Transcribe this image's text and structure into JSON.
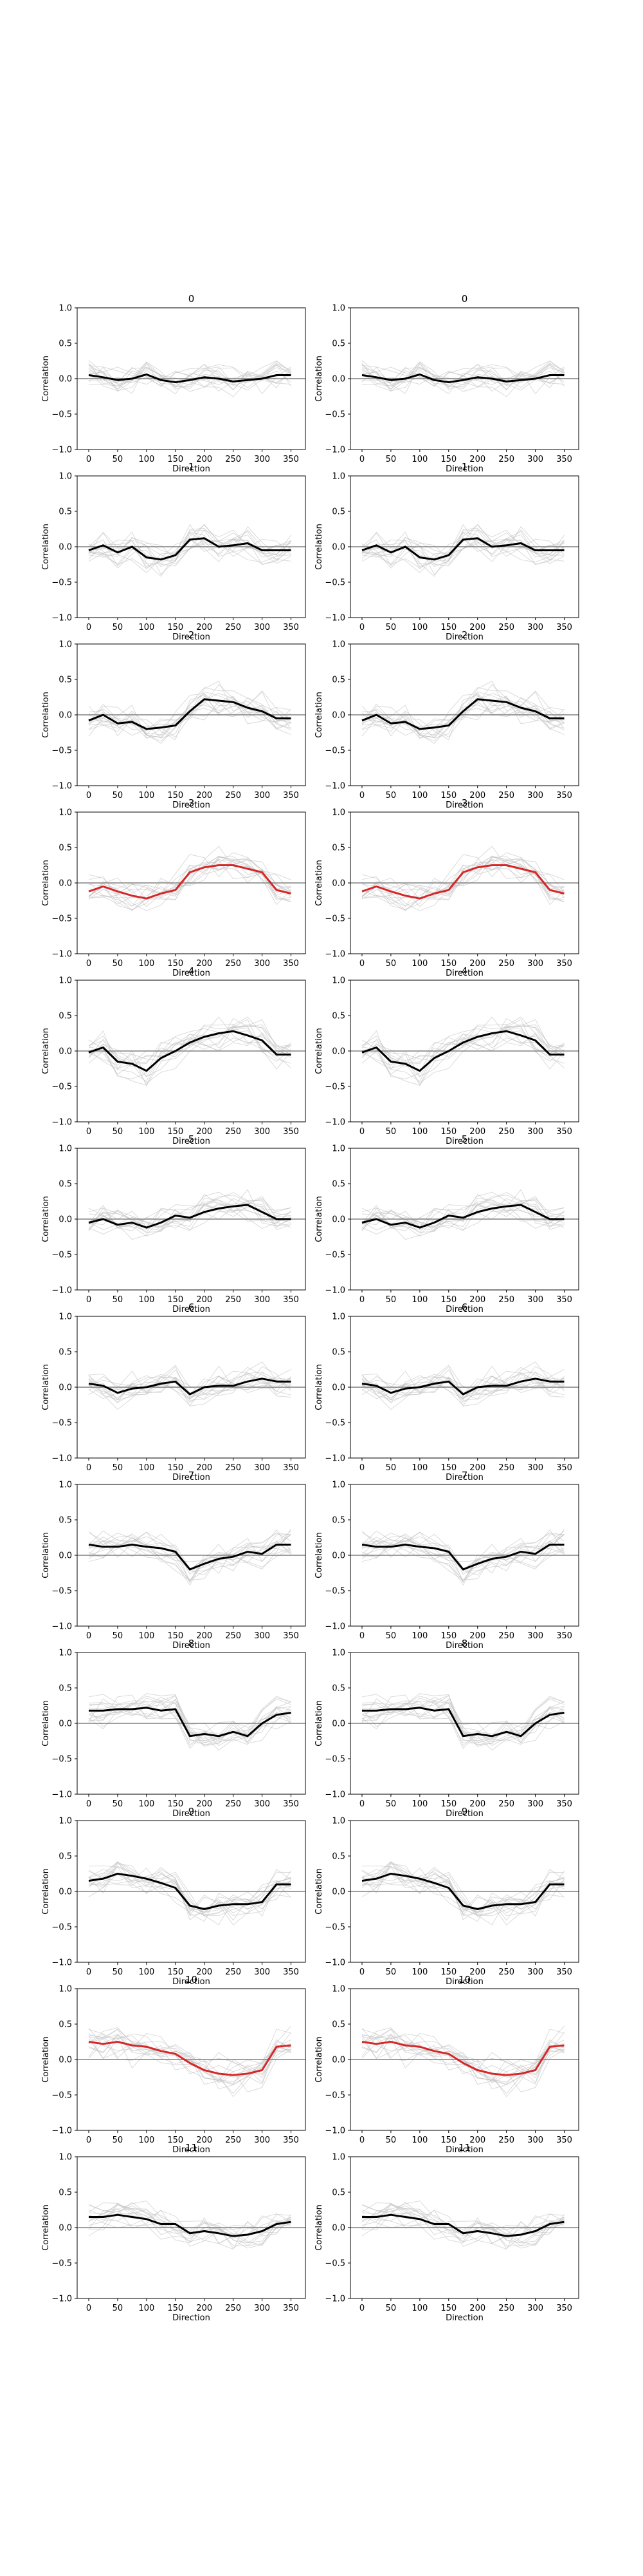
{
  "figure": {
    "xlabel": "Direction",
    "ylabel": "Correlation",
    "xticks": [
      0,
      50,
      100,
      150,
      200,
      250,
      300,
      350
    ],
    "yticks": [
      "1.0",
      "0.5",
      "0.0",
      "−0.5",
      "−1.0"
    ],
    "xlim": [
      -20,
      375
    ],
    "ylim": [
      -1.0,
      1.0
    ],
    "colors": {
      "mean_default": "#000000",
      "mean_highlight": "#d62728",
      "trials": "#bdbdbd",
      "zero_line": "#808080",
      "frame": "#000000"
    }
  },
  "chart_data": [
    {
      "type": "line",
      "row": 0,
      "col": 0,
      "title": "0",
      "highlight": false,
      "x": [
        0,
        25,
        50,
        75,
        100,
        125,
        150,
        175,
        200,
        225,
        250,
        275,
        300,
        325,
        350
      ],
      "y": [
        0.05,
        0.02,
        -0.02,
        0.0,
        0.06,
        -0.02,
        -0.05,
        -0.02,
        0.02,
        0.0,
        -0.04,
        -0.02,
        0.0,
        0.05,
        0.05
      ]
    },
    {
      "type": "line",
      "row": 0,
      "col": 1,
      "title": "0",
      "highlight": false,
      "x": [
        0,
        25,
        50,
        75,
        100,
        125,
        150,
        175,
        200,
        225,
        250,
        275,
        300,
        325,
        350
      ],
      "y": [
        0.05,
        0.02,
        -0.02,
        0.0,
        0.06,
        -0.02,
        -0.05,
        -0.02,
        0.02,
        0.0,
        -0.04,
        -0.02,
        0.0,
        0.05,
        0.05
      ]
    },
    {
      "type": "line",
      "row": 1,
      "col": 0,
      "title": "1",
      "highlight": false,
      "x": [
        0,
        25,
        50,
        75,
        100,
        125,
        150,
        175,
        200,
        225,
        250,
        275,
        300,
        325,
        350
      ],
      "y": [
        -0.05,
        0.02,
        -0.08,
        0.0,
        -0.15,
        -0.18,
        -0.12,
        0.1,
        0.12,
        0.0,
        0.02,
        0.05,
        -0.05,
        -0.05,
        -0.05
      ]
    },
    {
      "type": "line",
      "row": 1,
      "col": 1,
      "title": "1",
      "highlight": false,
      "x": [
        0,
        25,
        50,
        75,
        100,
        125,
        150,
        175,
        200,
        225,
        250,
        275,
        300,
        325,
        350
      ],
      "y": [
        -0.05,
        0.02,
        -0.08,
        0.0,
        -0.15,
        -0.18,
        -0.12,
        0.1,
        0.12,
        0.0,
        0.02,
        0.05,
        -0.05,
        -0.05,
        -0.05
      ]
    },
    {
      "type": "line",
      "row": 2,
      "col": 0,
      "title": "2",
      "highlight": false,
      "x": [
        0,
        25,
        50,
        75,
        100,
        125,
        150,
        175,
        200,
        225,
        250,
        275,
        300,
        325,
        350
      ],
      "y": [
        -0.08,
        0.0,
        -0.12,
        -0.1,
        -0.2,
        -0.18,
        -0.15,
        0.05,
        0.22,
        0.2,
        0.18,
        0.1,
        0.05,
        -0.05,
        -0.05
      ]
    },
    {
      "type": "line",
      "row": 2,
      "col": 1,
      "title": "2",
      "highlight": false,
      "x": [
        0,
        25,
        50,
        75,
        100,
        125,
        150,
        175,
        200,
        225,
        250,
        275,
        300,
        325,
        350
      ],
      "y": [
        -0.08,
        0.0,
        -0.12,
        -0.1,
        -0.2,
        -0.18,
        -0.15,
        0.05,
        0.22,
        0.2,
        0.18,
        0.1,
        0.05,
        -0.05,
        -0.05
      ]
    },
    {
      "type": "line",
      "row": 3,
      "col": 0,
      "title": "3",
      "highlight": true,
      "x": [
        0,
        25,
        50,
        75,
        100,
        125,
        150,
        175,
        200,
        225,
        250,
        275,
        300,
        325,
        350
      ],
      "y": [
        -0.12,
        -0.05,
        -0.12,
        -0.18,
        -0.22,
        -0.15,
        -0.1,
        0.15,
        0.22,
        0.25,
        0.25,
        0.2,
        0.15,
        -0.1,
        -0.15
      ]
    },
    {
      "type": "line",
      "row": 3,
      "col": 1,
      "title": "3",
      "highlight": true,
      "x": [
        0,
        25,
        50,
        75,
        100,
        125,
        150,
        175,
        200,
        225,
        250,
        275,
        300,
        325,
        350
      ],
      "y": [
        -0.12,
        -0.05,
        -0.12,
        -0.18,
        -0.22,
        -0.15,
        -0.1,
        0.15,
        0.22,
        0.25,
        0.25,
        0.2,
        0.15,
        -0.1,
        -0.15
      ]
    },
    {
      "type": "line",
      "row": 4,
      "col": 0,
      "title": "4",
      "highlight": false,
      "x": [
        0,
        25,
        50,
        75,
        100,
        125,
        150,
        175,
        200,
        225,
        250,
        275,
        300,
        325,
        350
      ],
      "y": [
        -0.02,
        0.05,
        -0.15,
        -0.18,
        -0.28,
        -0.1,
        0.0,
        0.12,
        0.2,
        0.25,
        0.28,
        0.22,
        0.15,
        -0.05,
        -0.05
      ]
    },
    {
      "type": "line",
      "row": 4,
      "col": 1,
      "title": "4",
      "highlight": false,
      "x": [
        0,
        25,
        50,
        75,
        100,
        125,
        150,
        175,
        200,
        225,
        250,
        275,
        300,
        325,
        350
      ],
      "y": [
        -0.02,
        0.05,
        -0.15,
        -0.18,
        -0.28,
        -0.1,
        0.0,
        0.12,
        0.2,
        0.25,
        0.28,
        0.22,
        0.15,
        -0.05,
        -0.05
      ]
    },
    {
      "type": "line",
      "row": 5,
      "col": 0,
      "title": "5",
      "highlight": false,
      "x": [
        0,
        25,
        50,
        75,
        100,
        125,
        150,
        175,
        200,
        225,
        250,
        275,
        300,
        325,
        350
      ],
      "y": [
        -0.05,
        0.0,
        -0.08,
        -0.05,
        -0.12,
        -0.05,
        0.05,
        0.02,
        0.1,
        0.15,
        0.18,
        0.2,
        0.1,
        0.0,
        0.0
      ]
    },
    {
      "type": "line",
      "row": 5,
      "col": 1,
      "title": "5",
      "highlight": false,
      "x": [
        0,
        25,
        50,
        75,
        100,
        125,
        150,
        175,
        200,
        225,
        250,
        275,
        300,
        325,
        350
      ],
      "y": [
        -0.05,
        0.0,
        -0.08,
        -0.05,
        -0.12,
        -0.05,
        0.05,
        0.02,
        0.1,
        0.15,
        0.18,
        0.2,
        0.1,
        0.0,
        0.0
      ]
    },
    {
      "type": "line",
      "row": 6,
      "col": 0,
      "title": "6",
      "highlight": false,
      "x": [
        0,
        25,
        50,
        75,
        100,
        125,
        150,
        175,
        200,
        225,
        250,
        275,
        300,
        325,
        350
      ],
      "y": [
        0.05,
        0.02,
        -0.08,
        -0.02,
        0.0,
        0.05,
        0.08,
        -0.1,
        0.0,
        0.02,
        0.02,
        0.08,
        0.12,
        0.08,
        0.08
      ]
    },
    {
      "type": "line",
      "row": 6,
      "col": 1,
      "title": "6",
      "highlight": false,
      "x": [
        0,
        25,
        50,
        75,
        100,
        125,
        150,
        175,
        200,
        225,
        250,
        275,
        300,
        325,
        350
      ],
      "y": [
        0.05,
        0.02,
        -0.08,
        -0.02,
        0.0,
        0.05,
        0.08,
        -0.1,
        0.0,
        0.02,
        0.02,
        0.08,
        0.12,
        0.08,
        0.08
      ]
    },
    {
      "type": "line",
      "row": 7,
      "col": 0,
      "title": "7",
      "highlight": false,
      "x": [
        0,
        25,
        50,
        75,
        100,
        125,
        150,
        175,
        200,
        225,
        250,
        275,
        300,
        325,
        350
      ],
      "y": [
        0.15,
        0.12,
        0.12,
        0.15,
        0.12,
        0.1,
        0.05,
        -0.2,
        -0.12,
        -0.05,
        -0.02,
        0.05,
        0.02,
        0.15,
        0.15
      ]
    },
    {
      "type": "line",
      "row": 7,
      "col": 1,
      "title": "7",
      "highlight": false,
      "x": [
        0,
        25,
        50,
        75,
        100,
        125,
        150,
        175,
        200,
        225,
        250,
        275,
        300,
        325,
        350
      ],
      "y": [
        0.15,
        0.12,
        0.12,
        0.15,
        0.12,
        0.1,
        0.05,
        -0.2,
        -0.12,
        -0.05,
        -0.02,
        0.05,
        0.02,
        0.15,
        0.15
      ]
    },
    {
      "type": "line",
      "row": 8,
      "col": 0,
      "title": "8",
      "highlight": false,
      "x": [
        0,
        25,
        50,
        75,
        100,
        125,
        150,
        175,
        200,
        225,
        250,
        275,
        300,
        325,
        350
      ],
      "y": [
        0.18,
        0.18,
        0.2,
        0.2,
        0.22,
        0.18,
        0.2,
        -0.18,
        -0.15,
        -0.18,
        -0.12,
        -0.18,
        0.0,
        0.12,
        0.15
      ]
    },
    {
      "type": "line",
      "row": 8,
      "col": 1,
      "title": "8",
      "highlight": false,
      "x": [
        0,
        25,
        50,
        75,
        100,
        125,
        150,
        175,
        200,
        225,
        250,
        275,
        300,
        325,
        350
      ],
      "y": [
        0.18,
        0.18,
        0.2,
        0.2,
        0.22,
        0.18,
        0.2,
        -0.18,
        -0.15,
        -0.18,
        -0.12,
        -0.18,
        0.0,
        0.12,
        0.15
      ]
    },
    {
      "type": "line",
      "row": 9,
      "col": 0,
      "title": "9",
      "highlight": false,
      "x": [
        0,
        25,
        50,
        75,
        100,
        125,
        150,
        175,
        200,
        225,
        250,
        275,
        300,
        325,
        350
      ],
      "y": [
        0.15,
        0.18,
        0.25,
        0.22,
        0.18,
        0.12,
        0.05,
        -0.2,
        -0.25,
        -0.2,
        -0.18,
        -0.18,
        -0.15,
        0.1,
        0.1
      ]
    },
    {
      "type": "line",
      "row": 9,
      "col": 1,
      "title": "9",
      "highlight": false,
      "x": [
        0,
        25,
        50,
        75,
        100,
        125,
        150,
        175,
        200,
        225,
        250,
        275,
        300,
        325,
        350
      ],
      "y": [
        0.15,
        0.18,
        0.25,
        0.22,
        0.18,
        0.12,
        0.05,
        -0.2,
        -0.25,
        -0.2,
        -0.18,
        -0.18,
        -0.15,
        0.1,
        0.1
      ]
    },
    {
      "type": "line",
      "row": 10,
      "col": 0,
      "title": "10",
      "highlight": true,
      "x": [
        0,
        25,
        50,
        75,
        100,
        125,
        150,
        175,
        200,
        225,
        250,
        275,
        300,
        325,
        350
      ],
      "y": [
        0.25,
        0.22,
        0.25,
        0.2,
        0.18,
        0.12,
        0.08,
        -0.05,
        -0.15,
        -0.2,
        -0.22,
        -0.2,
        -0.15,
        0.18,
        0.2
      ]
    },
    {
      "type": "line",
      "row": 10,
      "col": 1,
      "title": "10",
      "highlight": true,
      "x": [
        0,
        25,
        50,
        75,
        100,
        125,
        150,
        175,
        200,
        225,
        250,
        275,
        300,
        325,
        350
      ],
      "y": [
        0.25,
        0.22,
        0.25,
        0.2,
        0.18,
        0.12,
        0.08,
        -0.05,
        -0.15,
        -0.2,
        -0.22,
        -0.2,
        -0.15,
        0.18,
        0.2
      ]
    },
    {
      "type": "line",
      "row": 11,
      "col": 0,
      "title": "11",
      "highlight": false,
      "x": [
        0,
        25,
        50,
        75,
        100,
        125,
        150,
        175,
        200,
        225,
        250,
        275,
        300,
        325,
        350
      ],
      "y": [
        0.15,
        0.15,
        0.18,
        0.15,
        0.12,
        0.05,
        0.05,
        -0.08,
        -0.05,
        -0.08,
        -0.12,
        -0.1,
        -0.05,
        0.05,
        0.08
      ]
    },
    {
      "type": "line",
      "row": 11,
      "col": 1,
      "title": "11",
      "highlight": false,
      "x": [
        0,
        25,
        50,
        75,
        100,
        125,
        150,
        175,
        200,
        225,
        250,
        275,
        300,
        325,
        350
      ],
      "y": [
        0.15,
        0.15,
        0.18,
        0.15,
        0.12,
        0.05,
        0.05,
        -0.08,
        -0.05,
        -0.08,
        -0.12,
        -0.1,
        -0.05,
        0.05,
        0.08
      ]
    }
  ]
}
